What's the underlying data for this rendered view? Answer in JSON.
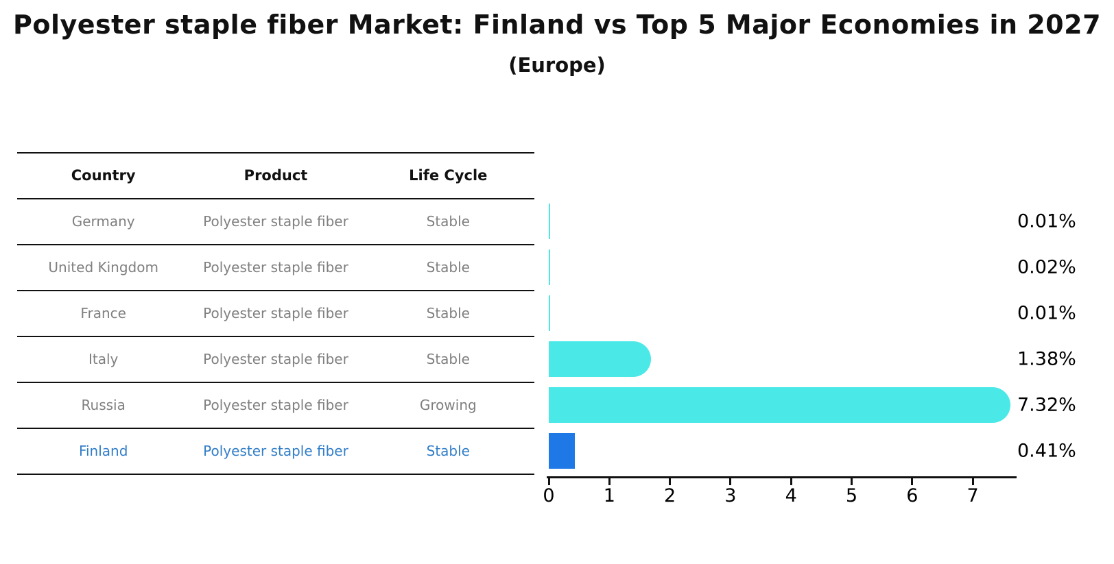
{
  "title": "Polyester staple fiber Market: Finland vs Top 5 Major Economies in 2027",
  "subtitle": "(Europe)",
  "table": {
    "headers": [
      "Country",
      "Product",
      "Life Cycle"
    ],
    "rows": [
      {
        "country": "Germany",
        "product": "Polyester staple fiber",
        "life_cycle": "Stable",
        "share_label": "0.01%",
        "highlight": false
      },
      {
        "country": "United Kingdom",
        "product": "Polyester staple fiber",
        "life_cycle": "Stable",
        "share_label": "0.02%",
        "highlight": false
      },
      {
        "country": "France",
        "product": "Polyester staple fiber",
        "life_cycle": "Stable",
        "share_label": "0.01%",
        "highlight": false
      },
      {
        "country": "Italy",
        "product": "Polyester staple fiber",
        "life_cycle": "Stable",
        "share_label": "1.38%",
        "highlight": false
      },
      {
        "country": "Russia",
        "product": "Polyester staple fiber",
        "life_cycle": "Growing",
        "share_label": "7.32%",
        "highlight": false
      },
      {
        "country": "Finland",
        "product": "Polyester staple fiber",
        "life_cycle": "Stable",
        "share_label": "0.41%",
        "highlight": true
      }
    ]
  },
  "chart_data": {
    "type": "bar",
    "orientation": "horizontal",
    "title": "Polyester staple fiber Market: Finland vs Top 5 Major Economies in 2027",
    "subtitle": "(Europe)",
    "categories": [
      "Germany",
      "United Kingdom",
      "France",
      "Italy",
      "Russia",
      "Finland"
    ],
    "values": [
      0.01,
      0.02,
      0.01,
      1.38,
      7.32,
      0.41
    ],
    "value_labels": [
      "0.01%",
      "0.02%",
      "0.01%",
      "1.38%",
      "7.32%",
      "0.41%"
    ],
    "x_ticks": [
      0,
      1,
      2,
      3,
      4,
      5,
      6,
      7
    ],
    "xlim": [
      0,
      7.75
    ],
    "xlabel": "",
    "ylabel": "",
    "grid": false,
    "legend": "none",
    "bar_color": "#4BE8E8",
    "highlight_bar_color": "#1E78E6",
    "highlight_index": 5
  },
  "colors": {
    "bar_cyan": "#4BE8E8",
    "bar_blue": "#1E78E6",
    "table_text_gray": "#7f7f7f",
    "highlight_text_blue": "#317DC7",
    "line_black": "#111111"
  }
}
